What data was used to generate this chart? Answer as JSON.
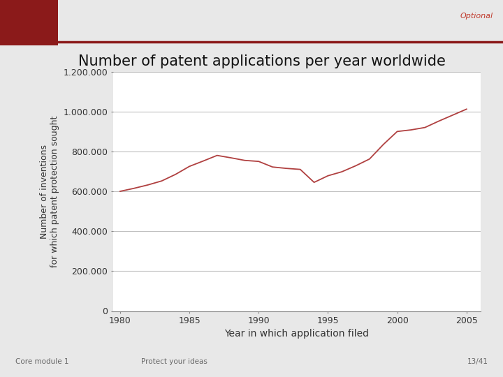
{
  "title": "Number of patent applications per year worldwide",
  "xlabel": "Year in which application filed",
  "ylabel": "Number of inventions\nfor which patent protection sought",
  "line_color": "#b04040",
  "background_color": "#f0f0f0",
  "plot_bg_color": "#ffffff",
  "years": [
    1980,
    1981,
    1982,
    1983,
    1984,
    1985,
    1986,
    1987,
    1988,
    1989,
    1990,
    1991,
    1992,
    1993,
    1994,
    1995,
    1996,
    1997,
    1998,
    1999,
    2000,
    2001,
    2002,
    2003,
    2004,
    2005
  ],
  "values": [
    600000,
    615000,
    632000,
    652000,
    685000,
    725000,
    752000,
    780000,
    768000,
    755000,
    750000,
    722000,
    715000,
    710000,
    645000,
    678000,
    698000,
    728000,
    762000,
    835000,
    900000,
    908000,
    920000,
    952000,
    982000,
    1012000
  ],
  "ylim": [
    0,
    1200000
  ],
  "xlim": [
    1979.5,
    2006
  ],
  "yticks": [
    0,
    200000,
    400000,
    600000,
    800000,
    1000000,
    1200000
  ],
  "xticks": [
    1980,
    1985,
    1990,
    1995,
    2000,
    2005
  ],
  "grid_color": "#c0c0c0",
  "title_fontsize": 15,
  "label_fontsize": 9,
  "tick_fontsize": 9,
  "header_text": "Optional",
  "header_text_color": "#c0392b",
  "footer_left": "Core module 1",
  "footer_center": "Protect your ideas",
  "footer_right": "13/41",
  "footer_bg": "#d0d0d0",
  "footer_text_color": "#666666",
  "top_bar_bg": "#8b1a1a",
  "top_bar_line_color": "#8b1a1a",
  "slide_bg": "#ffffff",
  "outer_bg": "#e8e8e8"
}
